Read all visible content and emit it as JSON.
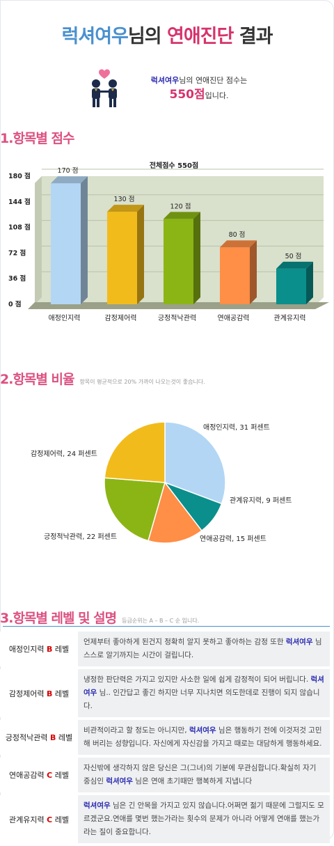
{
  "header": {
    "name": "럭셔여우",
    "suffix": "님의",
    "highlight": "연애진단",
    "tail": "결과"
  },
  "intro": {
    "name": "럭셔여우",
    "line1_tail": "님의 연애진단 점수는",
    "score": "550점",
    "score_tail": "입니다."
  },
  "sections": {
    "s1": {
      "title": "1.항목별 점수"
    },
    "s2": {
      "title": "2.항목별 비율",
      "note": "항목이 평균적으로 20% 가까이 나오는것이 좋습니다."
    },
    "s3": {
      "title": "3.항목별 레벨 및 설명",
      "note": "등급순위는 A – B – C 순 입니다."
    }
  },
  "chart_data": [
    {
      "type": "bar",
      "title": "전체점수 550점",
      "categories": [
        "애정인지력",
        "감정제어력",
        "긍정적낙관력",
        "연애공감력",
        "관계유지력"
      ],
      "values": [
        170,
        130,
        120,
        80,
        50
      ],
      "value_labels": [
        "170 점",
        "130 점",
        "120 점",
        "80 점",
        "50 점"
      ],
      "ylim": [
        0,
        180
      ],
      "yticks": [
        0,
        36,
        72,
        108,
        144,
        180
      ],
      "ytick_labels": [
        "0 점",
        "36 점",
        "72 점",
        "108 점",
        "144 점",
        "180 점"
      ],
      "colors": [
        "#b3d6f4",
        "#f2bb1c",
        "#8bb515",
        "#ff8e46",
        "#0a8f8c"
      ],
      "grid": true
    },
    {
      "type": "pie",
      "labels": [
        "애정인지력, 31 퍼센트",
        "관계유지력, 9 퍼센트",
        "연애공감력, 15 퍼센트",
        "긍정적낙관력, 22 퍼센트",
        "감정제어력, 24 퍼센트"
      ],
      "values": [
        31,
        9,
        15,
        22,
        24
      ],
      "colors": [
        "#b3d6f4",
        "#0a8f8c",
        "#ff8e46",
        "#8bb515",
        "#f2bb1c"
      ]
    }
  ],
  "levels": [
    {
      "item": "애정인지력",
      "grade": "B",
      "suffix": "레벨",
      "pre": "언제부터 좋아하게 된건지 정확히 알지 못하고 좋아하는 감정 또한",
      "name": "럭셔여우",
      "post": "님 스스로 알기까지는 시간이 걸립니다."
    },
    {
      "item": "감정제어력",
      "grade": "B",
      "suffix": "레벨",
      "pre": "냉정한 판단력은 가지고 있지만 사소한 일에 쉽게 감정적이 되어 버립니다.",
      "name": "럭셔여우",
      "post": "님.. 인간답고 좋긴 하지만 너무 지나치면 의도한데로 진행이 되지 않습니다."
    },
    {
      "item": "긍정적낙관력",
      "grade": "B",
      "suffix": "레벨",
      "pre": "비관적이라고 할 정도는 아니지만,",
      "name": "럭셔여우",
      "post": "님은 행동하기 전에 이것저것 고민해 버리는 성향입니다. 자신에게 자신감을 가지고 때로는 대담하게 행동하세요."
    },
    {
      "item": "연애공감력",
      "grade": "C",
      "suffix": "레벨",
      "pre": "자신밖에 생각하지 않은 당신은 그(그녀)의 기분에 무관심합니다.확실히 자기 중심인",
      "name": "럭셔여우",
      "post": "님은 연애 초기때만 행복하게 지냅니다"
    },
    {
      "item": "관계유지력",
      "grade": "C",
      "suffix": "레벨",
      "pre": "",
      "name": "럭셔여우",
      "post": "님은 긴 안목을 가지고 있지 않습니다.어쩌면 젊기 때문에 그럴지도 모르겠군요.연애를 몇번 했는가라는 횟수의 문제가 아니라 어떻게 연애를 했는가라는 질이 중요합니다."
    }
  ]
}
